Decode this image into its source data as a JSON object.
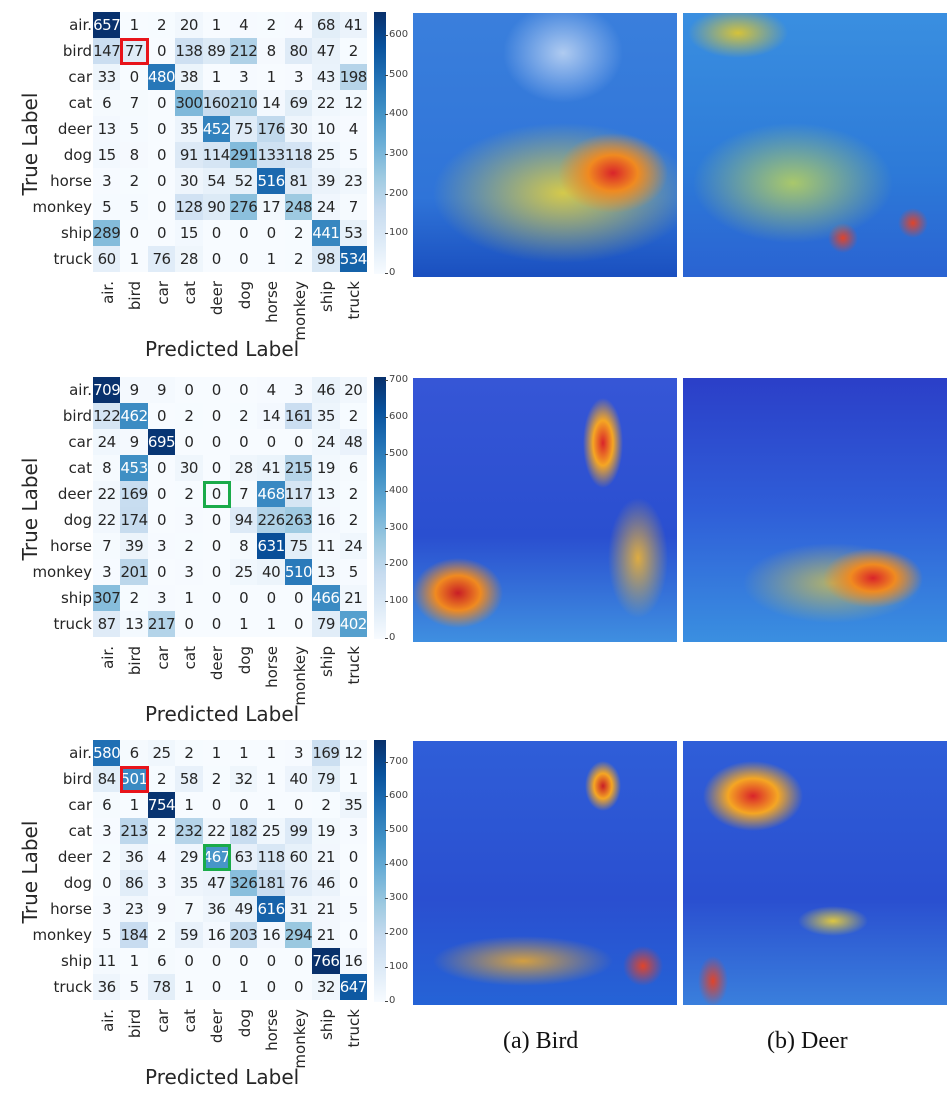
{
  "chart_data": [
    {
      "type": "heatmap",
      "title": "",
      "xlabel": "Predicted Label",
      "ylabel": "True Label",
      "categories": [
        "air.",
        "bird",
        "car",
        "cat",
        "deer",
        "dog",
        "horse",
        "monkey",
        "ship",
        "truck"
      ],
      "colorbar_ticks": [
        0,
        100,
        200,
        300,
        400,
        500,
        600
      ],
      "vmax": 660,
      "highlights": [
        {
          "row": 1,
          "col": 1,
          "color": "#e8141b"
        }
      ],
      "values": [
        [
          657,
          1,
          2,
          20,
          1,
          4,
          2,
          4,
          68,
          41
        ],
        [
          147,
          77,
          0,
          138,
          89,
          212,
          8,
          80,
          47,
          2
        ],
        [
          33,
          0,
          480,
          38,
          1,
          3,
          1,
          3,
          43,
          198
        ],
        [
          6,
          7,
          0,
          300,
          160,
          210,
          14,
          69,
          22,
          12
        ],
        [
          13,
          5,
          0,
          35,
          452,
          75,
          176,
          30,
          10,
          4
        ],
        [
          15,
          8,
          0,
          91,
          114,
          291,
          133,
          118,
          25,
          5
        ],
        [
          3,
          2,
          0,
          30,
          54,
          52,
          516,
          81,
          39,
          23
        ],
        [
          5,
          5,
          0,
          128,
          90,
          276,
          17,
          248,
          24,
          7
        ],
        [
          289,
          0,
          0,
          15,
          0,
          0,
          0,
          2,
          441,
          53
        ],
        [
          60,
          1,
          76,
          28,
          0,
          0,
          1,
          2,
          98,
          534
        ]
      ]
    },
    {
      "type": "heatmap",
      "title": "",
      "xlabel": "Predicted Label",
      "ylabel": "True Label",
      "categories": [
        "air.",
        "bird",
        "car",
        "cat",
        "deer",
        "dog",
        "horse",
        "monkey",
        "ship",
        "truck"
      ],
      "colorbar_ticks": [
        0,
        100,
        200,
        300,
        400,
        500,
        600,
        700
      ],
      "vmax": 712,
      "highlights": [
        {
          "row": 4,
          "col": 4,
          "color": "#1aab4a"
        }
      ],
      "values": [
        [
          709,
          9,
          9,
          0,
          0,
          0,
          4,
          3,
          46,
          20
        ],
        [
          122,
          462,
          0,
          2,
          0,
          2,
          14,
          161,
          35,
          2
        ],
        [
          24,
          9,
          695,
          0,
          0,
          0,
          0,
          0,
          24,
          48
        ],
        [
          8,
          453,
          0,
          30,
          0,
          28,
          41,
          215,
          19,
          6
        ],
        [
          22,
          169,
          0,
          2,
          0,
          7,
          468,
          117,
          13,
          2
        ],
        [
          22,
          174,
          0,
          3,
          0,
          94,
          226,
          263,
          16,
          2
        ],
        [
          7,
          39,
          3,
          2,
          0,
          8,
          631,
          75,
          11,
          24
        ],
        [
          3,
          201,
          0,
          3,
          0,
          25,
          40,
          510,
          13,
          5
        ],
        [
          307,
          2,
          3,
          1,
          0,
          0,
          0,
          0,
          466,
          21
        ],
        [
          87,
          13,
          217,
          0,
          0,
          1,
          1,
          0,
          79,
          402
        ]
      ]
    },
    {
      "type": "heatmap",
      "title": "",
      "xlabel": "Predicted Label",
      "ylabel": "True Label",
      "categories": [
        "air.",
        "bird",
        "car",
        "cat",
        "deer",
        "dog",
        "horse",
        "monkey",
        "ship",
        "truck"
      ],
      "colorbar_ticks": [
        0,
        100,
        200,
        300,
        400,
        500,
        600,
        700
      ],
      "vmax": 766,
      "highlights": [
        {
          "row": 1,
          "col": 1,
          "color": "#e8141b"
        },
        {
          "row": 4,
          "col": 4,
          "color": "#1aab4a"
        }
      ],
      "values": [
        [
          580,
          6,
          25,
          2,
          1,
          1,
          1,
          3,
          169,
          12
        ],
        [
          84,
          501,
          2,
          58,
          2,
          32,
          1,
          40,
          79,
          1
        ],
        [
          6,
          1,
          754,
          1,
          0,
          0,
          1,
          0,
          2,
          35
        ],
        [
          3,
          213,
          2,
          232,
          22,
          182,
          25,
          99,
          19,
          3
        ],
        [
          2,
          36,
          4,
          29,
          467,
          63,
          118,
          60,
          21,
          0
        ],
        [
          0,
          86,
          3,
          35,
          47,
          326,
          181,
          76,
          46,
          0
        ],
        [
          3,
          23,
          9,
          7,
          36,
          49,
          616,
          31,
          21,
          5
        ],
        [
          5,
          184,
          2,
          59,
          16,
          203,
          16,
          294,
          21,
          0
        ],
        [
          11,
          1,
          6,
          0,
          0,
          0,
          0,
          0,
          766,
          16
        ],
        [
          36,
          5,
          78,
          1,
          0,
          1,
          0,
          0,
          32,
          647
        ]
      ]
    }
  ],
  "captions": {
    "bird": "(a) Bird",
    "deer": "(b) Deer"
  }
}
